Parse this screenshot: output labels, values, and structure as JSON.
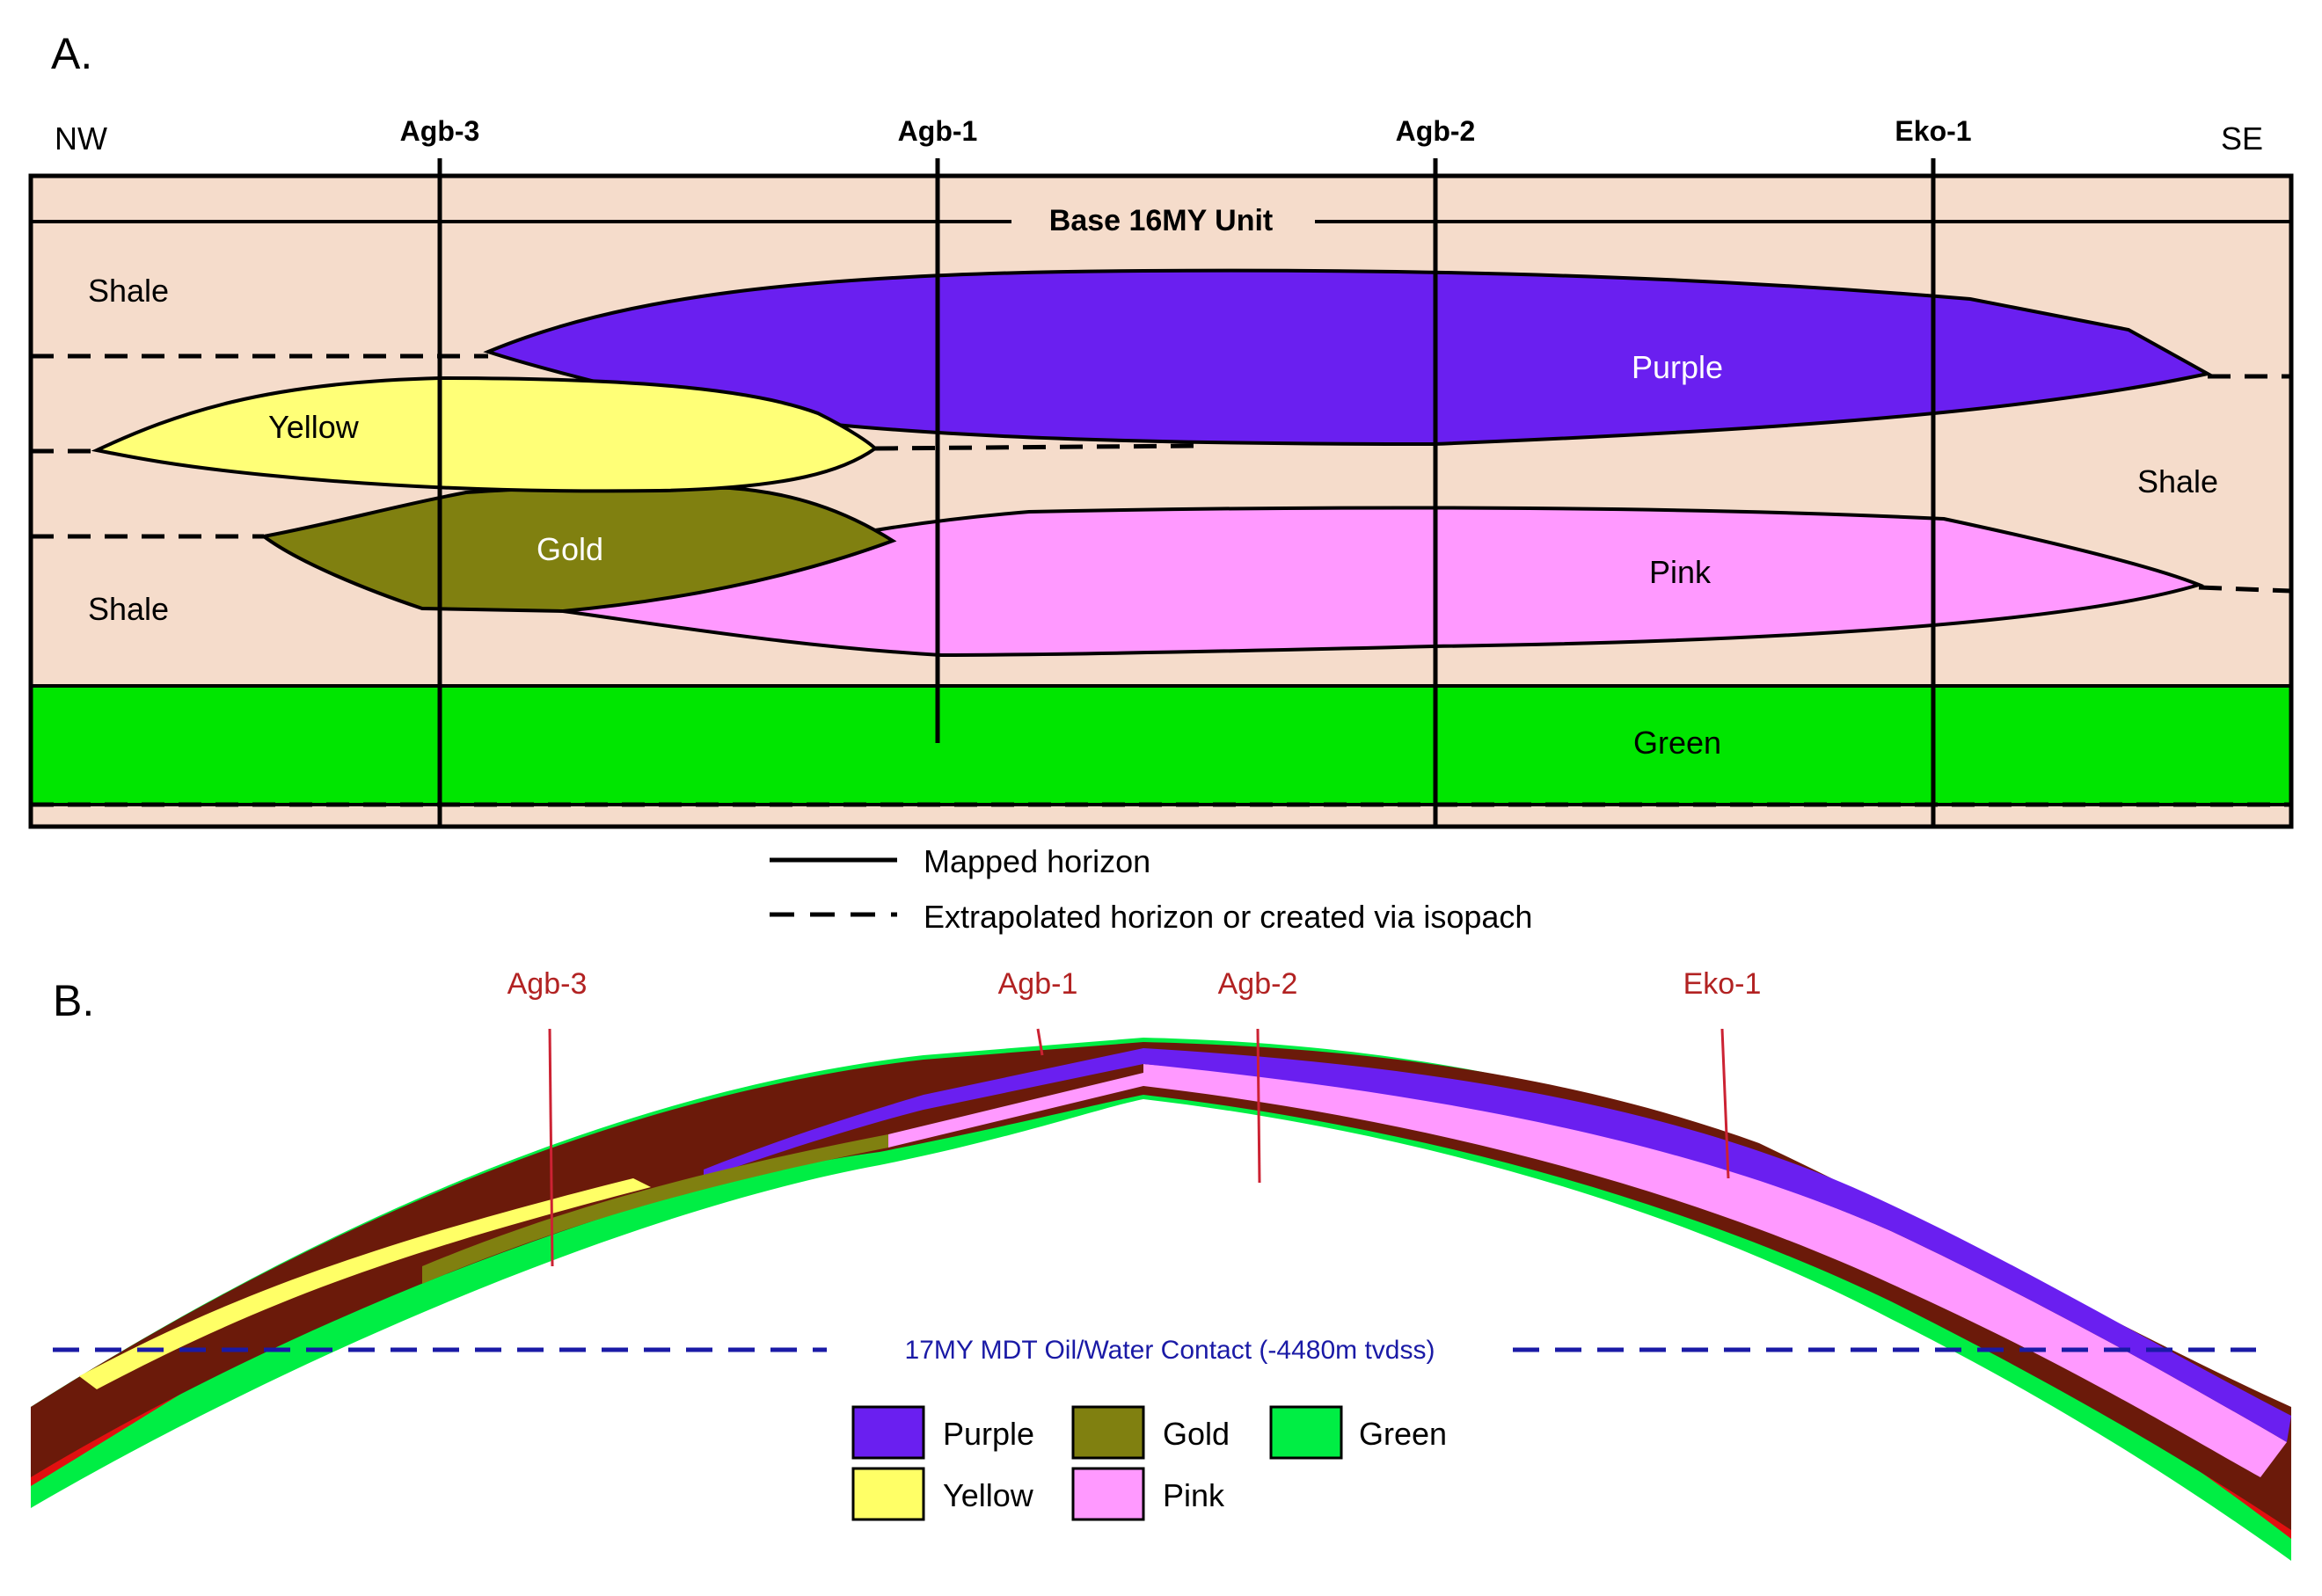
{
  "panel_a": {
    "label": "A.",
    "direction_left": "NW",
    "direction_right": "SE",
    "wells": [
      "Agb-3",
      "Agb-1",
      "Agb-2",
      "Eko-1"
    ],
    "horizon_label": "Base 16MY Unit",
    "bodies": {
      "shale_upper": "Shale",
      "shale_lower": "Shale",
      "shale_right": "Shale",
      "yellow": "Yellow",
      "gold": "Gold",
      "purple": "Purple",
      "pink": "Pink",
      "green": "Green"
    },
    "line_legend": {
      "mapped": "Mapped horizon",
      "extrapolated": "Extrapolated horizon or created via isopach"
    }
  },
  "panel_b": {
    "label": "B.",
    "wells": [
      "Agb-3",
      "Agb-1",
      "Agb-2",
      "Eko-1"
    ],
    "contact_label": "17MY MDT Oil/Water Contact (-4480m tvdss)",
    "legend": [
      {
        "name": "Purple",
        "color": "#6a1ff0"
      },
      {
        "name": "Gold",
        "color": "#808010"
      },
      {
        "name": "Green",
        "color": "#00ee44"
      },
      {
        "name": "Yellow",
        "color": "#ffff66"
      },
      {
        "name": "Pink",
        "color": "#ff99ff"
      }
    ]
  },
  "colors": {
    "shale": "#f5dccb",
    "purple": "#6a1ff0",
    "yellow": "#ffff77",
    "gold": "#808010",
    "pink": "#ff99ff",
    "green": "#00e600",
    "brown": "#6b1a0a",
    "red": "#e01010",
    "well_red": "#cc2233",
    "contact_blue": "#1a1aa6"
  }
}
